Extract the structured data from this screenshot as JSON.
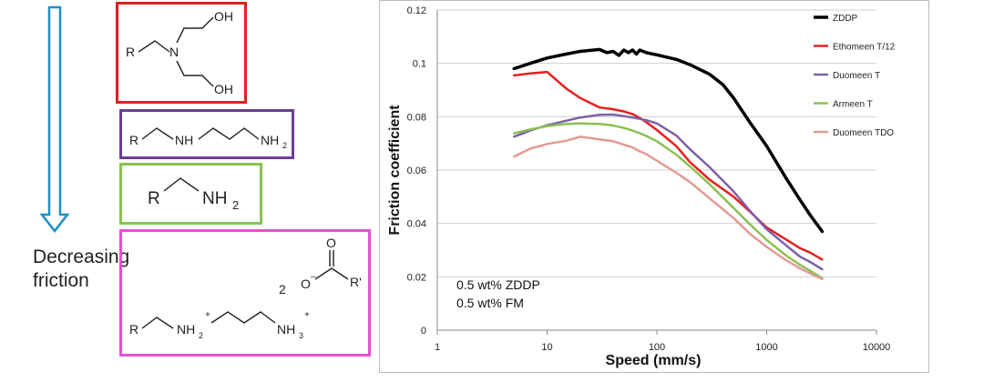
{
  "trend_arrow": {
    "label_line1": "Decreasing",
    "label_line2": "friction",
    "color": "#1e90c8"
  },
  "structures": {
    "amine_diol": {
      "border_color": "#e02020",
      "labels": [
        "R",
        "N",
        "OH",
        "OH"
      ]
    },
    "diamine": {
      "border_color": "#6a3d9a",
      "labels": [
        "R",
        "NH",
        "NH",
        "2"
      ]
    },
    "primary_amine": {
      "border_color": "#8cc152",
      "labels": [
        "R",
        "NH",
        "2"
      ]
    },
    "diamine_salt": {
      "border_color": "#e84fd0",
      "labels": [
        "2",
        "O",
        "–",
        "R'",
        "R",
        "NH",
        "2",
        "+",
        "NH",
        "3",
        "+"
      ]
    }
  },
  "chart_data": {
    "type": "line",
    "xscale": "log",
    "xlabel": "Speed (mm/s)",
    "ylabel": "Friction coefficient",
    "xlim": [
      1,
      10000
    ],
    "ylim": [
      0,
      0.12
    ],
    "xticks": [
      1,
      10,
      100,
      1000,
      10000
    ],
    "xtick_labels": [
      "1",
      "10",
      "100",
      "1000",
      "10000"
    ],
    "yticks": [
      0,
      0.02,
      0.04,
      0.06,
      0.08,
      0.1,
      0.12
    ],
    "ytick_labels": [
      "0",
      "0.02",
      "0.04",
      "0.06",
      "0.08",
      "0.1",
      "0.12"
    ],
    "grid": "horizontal",
    "legend_position": "top-right",
    "annotations": [
      "0.5 wt% ZDDP",
      "0.5 wt% FM"
    ],
    "series": [
      {
        "name": "ZDDP",
        "color": "#000000",
        "width": 3.5,
        "x": [
          5,
          7,
          10,
          15,
          20,
          30,
          35,
          40,
          45,
          50,
          55,
          60,
          65,
          70,
          80,
          100,
          150,
          200,
          300,
          400,
          500,
          700,
          1000,
          1500,
          2000,
          2500,
          3200
        ],
        "y": [
          0.098,
          0.1,
          0.102,
          0.1035,
          0.1045,
          0.1052,
          0.104,
          0.1045,
          0.103,
          0.105,
          0.104,
          0.105,
          0.1035,
          0.105,
          0.104,
          0.1032,
          0.1015,
          0.0995,
          0.096,
          0.092,
          0.087,
          0.078,
          0.069,
          0.057,
          0.049,
          0.043,
          0.037
        ]
      },
      {
        "name": "Ethomeen T/12",
        "color": "#e8201f",
        "width": 2.5,
        "x": [
          5,
          7,
          10,
          15,
          20,
          30,
          40,
          50,
          60,
          70,
          80,
          100,
          150,
          200,
          300,
          500,
          700,
          1000,
          1500,
          2000,
          2500,
          3200
        ],
        "y": [
          0.0955,
          0.0962,
          0.0968,
          0.0905,
          0.087,
          0.0835,
          0.0828,
          0.082,
          0.081,
          0.0795,
          0.078,
          0.075,
          0.069,
          0.063,
          0.0565,
          0.05,
          0.0445,
          0.0385,
          0.034,
          0.0308,
          0.029,
          0.0265
        ]
      },
      {
        "name": "Duomeen T",
        "color": "#7b61a8",
        "width": 2.5,
        "x": [
          5,
          7,
          10,
          15,
          20,
          30,
          40,
          50,
          60,
          70,
          80,
          100,
          150,
          200,
          300,
          500,
          700,
          1000,
          1500,
          2000,
          2500,
          3200
        ],
        "y": [
          0.0725,
          0.0748,
          0.0768,
          0.0785,
          0.0797,
          0.0807,
          0.0808,
          0.0802,
          0.0797,
          0.0792,
          0.0787,
          0.0775,
          0.073,
          0.0678,
          0.0612,
          0.052,
          0.0448,
          0.0378,
          0.0318,
          0.0276,
          0.0255,
          0.0228
        ]
      },
      {
        "name": "Armeen T",
        "color": "#8cc152",
        "width": 2.5,
        "x": [
          5,
          7,
          10,
          15,
          20,
          30,
          40,
          50,
          60,
          70,
          80,
          100,
          150,
          200,
          300,
          500,
          700,
          1000,
          1500,
          2000,
          2500,
          3200
        ],
        "y": [
          0.0738,
          0.0752,
          0.0765,
          0.0773,
          0.0775,
          0.0773,
          0.0767,
          0.0758,
          0.0748,
          0.0738,
          0.0728,
          0.0708,
          0.0658,
          0.0614,
          0.0548,
          0.0458,
          0.0398,
          0.0338,
          0.028,
          0.0245,
          0.0222,
          0.0195
        ]
      },
      {
        "name": "Duomeen TDO",
        "color": "#e39a94",
        "width": 2.5,
        "x": [
          5,
          7,
          10,
          15,
          20,
          30,
          40,
          50,
          60,
          70,
          80,
          100,
          150,
          200,
          300,
          500,
          700,
          1000,
          1500,
          2000,
          2500,
          3200
        ],
        "y": [
          0.065,
          0.068,
          0.0698,
          0.071,
          0.0725,
          0.0715,
          0.0708,
          0.0695,
          0.0685,
          0.067,
          0.066,
          0.0635,
          0.059,
          0.0555,
          0.0495,
          0.042,
          0.0362,
          0.0312,
          0.0262,
          0.0232,
          0.0212,
          0.0192
        ]
      }
    ]
  }
}
